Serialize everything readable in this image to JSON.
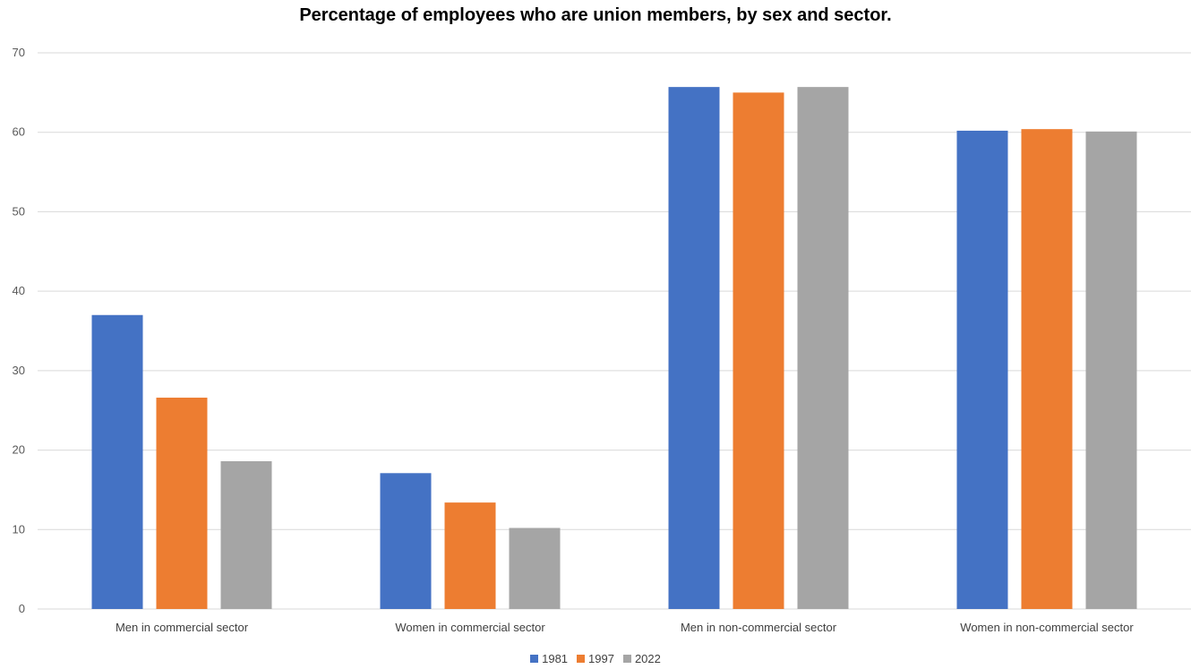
{
  "chart_data": {
    "type": "bar",
    "title": "Percentage of employees who are union members, by  sex and sector.",
    "xlabel": "",
    "ylabel": "",
    "ylim": [
      0,
      70
    ],
    "yticks": [
      0,
      10,
      20,
      30,
      40,
      50,
      60,
      70
    ],
    "grid": true,
    "legend_position": "bottom",
    "categories": [
      "Men in commercial sector",
      "Women in commercial sector",
      "Men in non-commercial sector",
      "Women in non-commercial sector"
    ],
    "series": [
      {
        "name": "1981",
        "color": "#4472C4",
        "values": [
          37.0,
          17.1,
          65.7,
          60.2
        ]
      },
      {
        "name": "1997",
        "color": "#ED7D31",
        "values": [
          26.6,
          13.4,
          65.0,
          60.4
        ]
      },
      {
        "name": "2022",
        "color": "#A5A5A5",
        "values": [
          18.6,
          10.2,
          65.7,
          60.1
        ]
      }
    ]
  }
}
